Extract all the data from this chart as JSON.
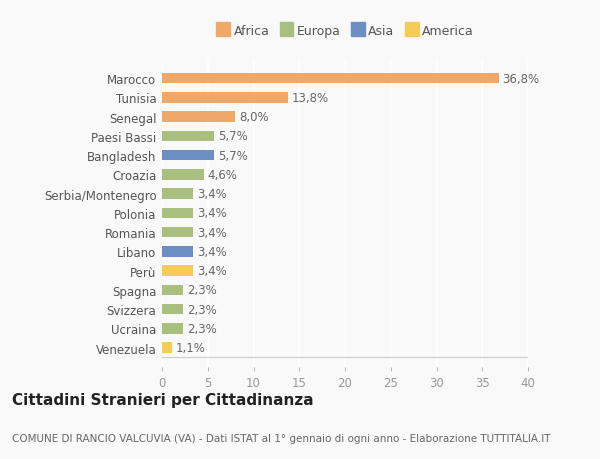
{
  "categories": [
    "Venezuela",
    "Ucraina",
    "Svizzera",
    "Spagna",
    "Perù",
    "Libano",
    "Romania",
    "Polonia",
    "Serbia/Montenegro",
    "Croazia",
    "Bangladesh",
    "Paesi Bassi",
    "Senegal",
    "Tunisia",
    "Marocco"
  ],
  "values": [
    1.1,
    2.3,
    2.3,
    2.3,
    3.4,
    3.4,
    3.4,
    3.4,
    3.4,
    4.6,
    5.7,
    5.7,
    8.0,
    13.8,
    36.8
  ],
  "colors": [
    "#f5cc5a",
    "#a8bf80",
    "#a8bf80",
    "#a8bf80",
    "#f5cc5a",
    "#6b8fc2",
    "#a8bf80",
    "#a8bf80",
    "#a8bf80",
    "#a8bf80",
    "#6b8fc2",
    "#a8bf80",
    "#f0a868",
    "#f0a868",
    "#f0a868"
  ],
  "labels": [
    "1,1%",
    "2,3%",
    "2,3%",
    "2,3%",
    "3,4%",
    "3,4%",
    "3,4%",
    "3,4%",
    "3,4%",
    "4,6%",
    "5,7%",
    "5,7%",
    "8,0%",
    "13,8%",
    "36,8%"
  ],
  "legend": [
    {
      "label": "Africa",
      "color": "#f0a868"
    },
    {
      "label": "Europa",
      "color": "#a8bf80"
    },
    {
      "label": "Asia",
      "color": "#6b8fc2"
    },
    {
      "label": "America",
      "color": "#f5cc5a"
    }
  ],
  "title": "Cittadini Stranieri per Cittadinanza",
  "subtitle": "COMUNE DI RANCIO VALCUVIA (VA) - Dati ISTAT al 1° gennaio di ogni anno - Elaborazione TUTTITALIA.IT",
  "xlim": [
    0,
    40
  ],
  "xticks": [
    0,
    5,
    10,
    15,
    20,
    25,
    30,
    35,
    40
  ],
  "background_color": "#f9f9f9",
  "grid_color": "#ffffff",
  "bar_height": 0.55,
  "label_fontsize": 8.5,
  "tick_fontsize": 8.5,
  "title_fontsize": 11,
  "subtitle_fontsize": 7.5
}
